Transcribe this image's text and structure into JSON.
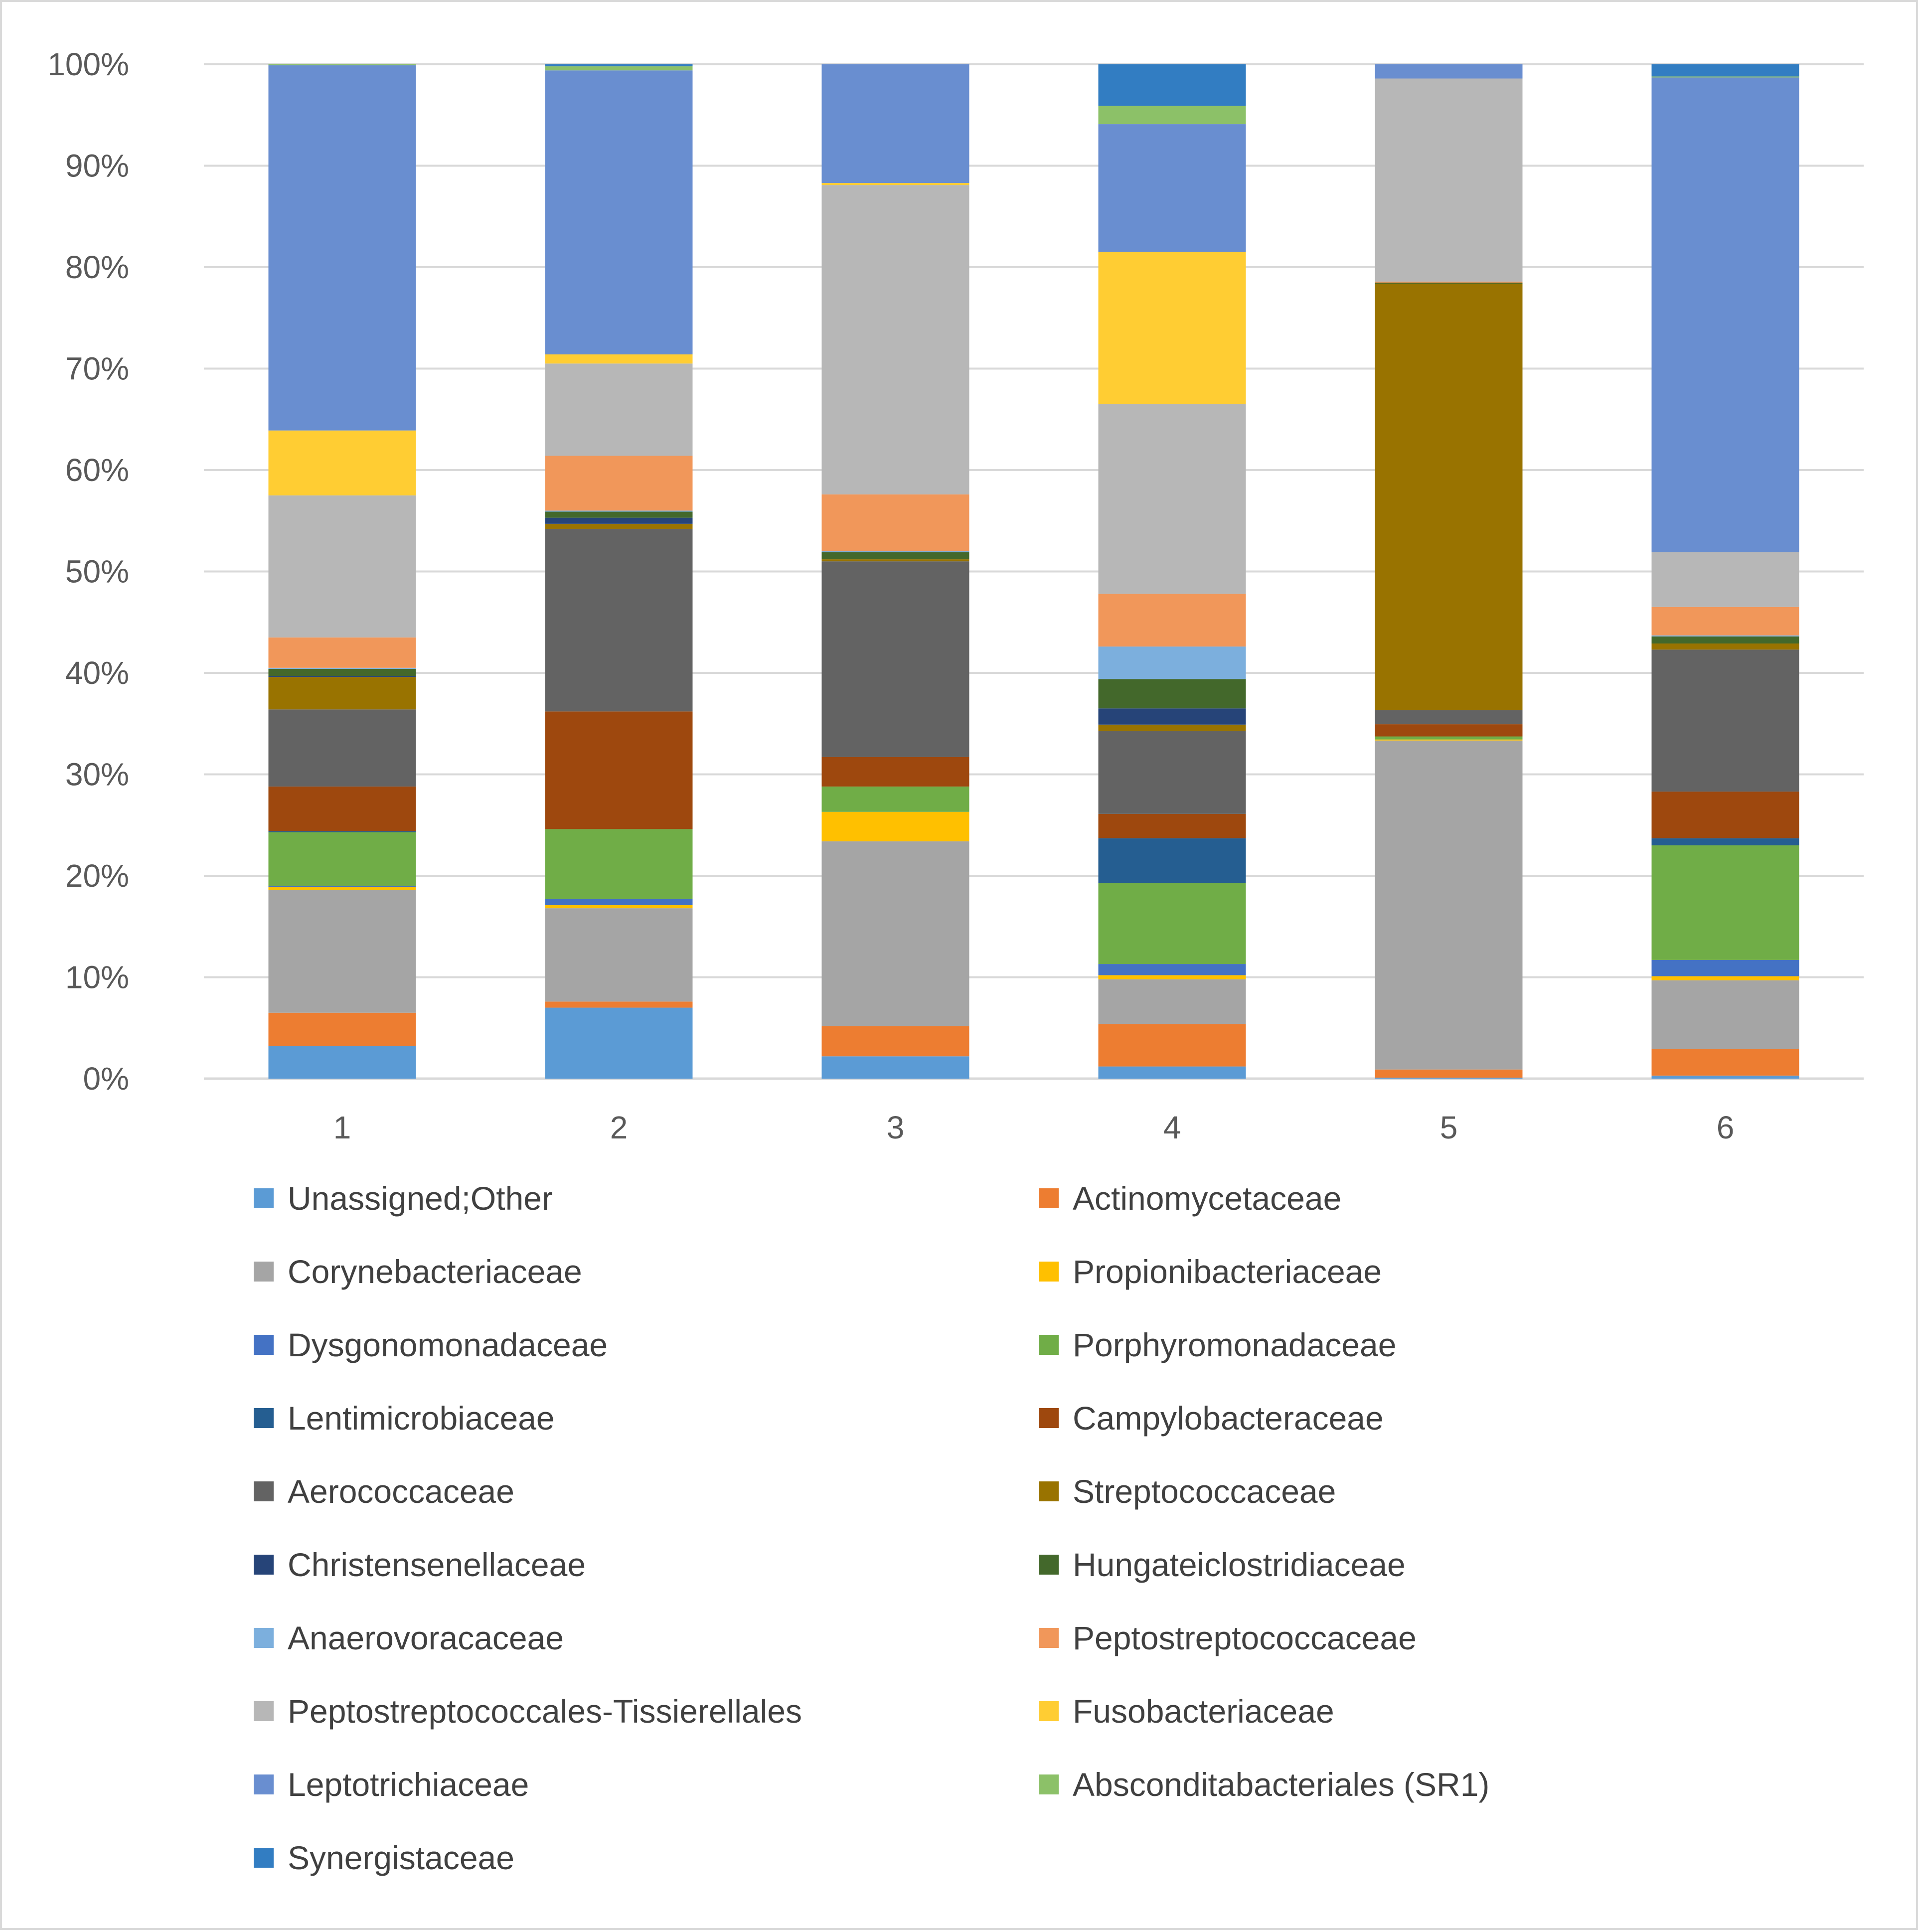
{
  "chart_data": {
    "type": "bar",
    "stacked": "percent",
    "title": "",
    "xlabel": "",
    "ylabel": "",
    "ylim": [
      0,
      100
    ],
    "yticks": [
      "0%",
      "10%",
      "20%",
      "30%",
      "40%",
      "50%",
      "60%",
      "70%",
      "80%",
      "90%",
      "100%"
    ],
    "categories": [
      "1",
      "2",
      "3",
      "4",
      "5",
      "6"
    ],
    "grid": true,
    "legend_position": "bottom",
    "series": [
      {
        "name": "Unassigned;Other",
        "color": "#5b9bd5",
        "values": [
          3.2,
          7.0,
          2.2,
          1.2,
          0.1,
          0.3
        ]
      },
      {
        "name": "Actinomycetaceae",
        "color": "#ed7d31",
        "values": [
          3.3,
          0.6,
          3.0,
          4.2,
          0.8,
          2.6
        ]
      },
      {
        "name": "Corynebacteriaceae",
        "color": "#a5a5a5",
        "values": [
          12.1,
          9.2,
          18.2,
          4.4,
          32.4,
          6.8
        ]
      },
      {
        "name": "Propionibacteriaceae",
        "color": "#ffc000",
        "values": [
          0.3,
          0.3,
          2.9,
          0.4,
          0.1,
          0.4
        ]
      },
      {
        "name": "Dysgonomonadaceae",
        "color": "#4472c4",
        "values": [
          0.1,
          0.6,
          0.0,
          1.1,
          0.0,
          1.6
        ]
      },
      {
        "name": "Porphyromonadaceae",
        "color": "#70ad47",
        "values": [
          5.3,
          6.9,
          2.5,
          8.0,
          0.3,
          11.3
        ]
      },
      {
        "name": "Lentimicrobiaceae",
        "color": "#255e91",
        "values": [
          0.1,
          0.0,
          0.0,
          4.4,
          0.0,
          0.7
        ]
      },
      {
        "name": "Campylobacteraceae",
        "color": "#9e480e",
        "values": [
          4.4,
          11.6,
          2.9,
          2.4,
          1.2,
          4.6
        ]
      },
      {
        "name": "Aerococcaceae",
        "color": "#636363",
        "values": [
          7.6,
          18.0,
          19.3,
          8.2,
          1.4,
          14.0
        ]
      },
      {
        "name": "Streptococcaceae",
        "color": "#997300",
        "values": [
          3.2,
          0.5,
          0.2,
          0.6,
          42.0,
          0.6
        ]
      },
      {
        "name": "Christensenellaceae",
        "color": "#264478",
        "values": [
          0.1,
          0.6,
          0.0,
          1.6,
          0.0,
          0.0
        ]
      },
      {
        "name": "Hungateiclostridiaceae",
        "color": "#43682b",
        "values": [
          0.7,
          0.6,
          0.7,
          2.9,
          0.1,
          0.7
        ]
      },
      {
        "name": "Anaerovoracaceae",
        "color": "#7cafdd",
        "values": [
          0.1,
          0.1,
          0.1,
          3.2,
          0.0,
          0.1
        ]
      },
      {
        "name": "Peptostreptococcaceae",
        "color": "#f1975a",
        "values": [
          3.0,
          5.4,
          5.6,
          5.2,
          0.1,
          2.8
        ]
      },
      {
        "name": "Peptostreptococcales-Tissierellales",
        "color": "#b7b7b7",
        "values": [
          14.0,
          9.1,
          30.5,
          18.7,
          20.0,
          5.4
        ]
      },
      {
        "name": "Fusobacteriaceae",
        "color": "#ffcd33",
        "values": [
          6.4,
          0.9,
          0.2,
          15.0,
          0.0,
          0.0
        ]
      },
      {
        "name": "Leptotrichiaceae",
        "color": "#698ed0",
        "values": [
          36.0,
          28.0,
          11.7,
          12.6,
          1.4,
          46.8
        ]
      },
      {
        "name": "Absconditabacteriales (SR1)",
        "color": "#8cc168",
        "values": [
          0.1,
          0.4,
          0.0,
          1.8,
          0.0,
          0.1
        ]
      },
      {
        "name": "Synergistaceae",
        "color": "#327dc2",
        "values": [
          0.0,
          0.2,
          0.0,
          4.1,
          0.0,
          1.2
        ]
      }
    ]
  }
}
